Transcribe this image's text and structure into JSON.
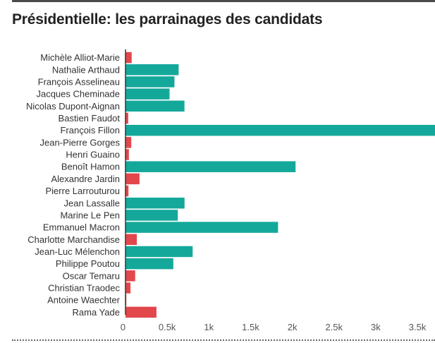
{
  "header": {
    "title": "Présidentielle: les parrainages des candidats"
  },
  "chart_data": {
    "type": "bar",
    "orientation": "horizontal",
    "title": "Présidentielle: les parrainages des candidats",
    "xlabel": "",
    "ylabel": "",
    "xlim": [
      0,
      3750
    ],
    "grid": false,
    "legend": "none",
    "x_ticks": [
      "0",
      "0.5k",
      "1k",
      "1.5k",
      "2k",
      "2.5k",
      "3k",
      "3.5k"
    ],
    "x_tick_values": [
      0,
      500,
      1000,
      1500,
      2000,
      2500,
      3000,
      3500
    ],
    "colors": {
      "above_threshold": "#14a89a",
      "below_threshold": "#e2474b"
    },
    "categories": [
      "Michèle Alliot-Marie",
      "Nathalie Arthaud",
      "François Asselineau",
      "Jacques Cheminade",
      "Nicolas Dupont-Aignan",
      "Bastien Faudot",
      "François Fillon",
      "Jean-Pierre Gorges",
      "Henri Guaino",
      "Benoît Hamon",
      "Alexandre Jardin",
      "Pierre Larrouturou",
      "Jean Lassalle",
      "Marine Le Pen",
      "Emmanuel Macron",
      "Charlotte Marchandise",
      "Jean-Luc Mélenchon",
      "Philippe Poutou",
      "Oscar Temaru",
      "Christian Traodec",
      "Antoine Waechter",
      "Rama Yade"
    ],
    "values": [
      74,
      637,
      587,
      528,
      707,
      33,
      3800,
      69,
      41,
      2039,
      168,
      36,
      708,
      627,
      1829,
      136,
      805,
      573,
      116,
      60,
      10,
      371
    ],
    "status": [
      "below",
      "above",
      "above",
      "above",
      "above",
      "below",
      "above",
      "below",
      "below",
      "above",
      "below",
      "below",
      "above",
      "above",
      "above",
      "below",
      "above",
      "above",
      "below",
      "below",
      "below",
      "below"
    ]
  }
}
